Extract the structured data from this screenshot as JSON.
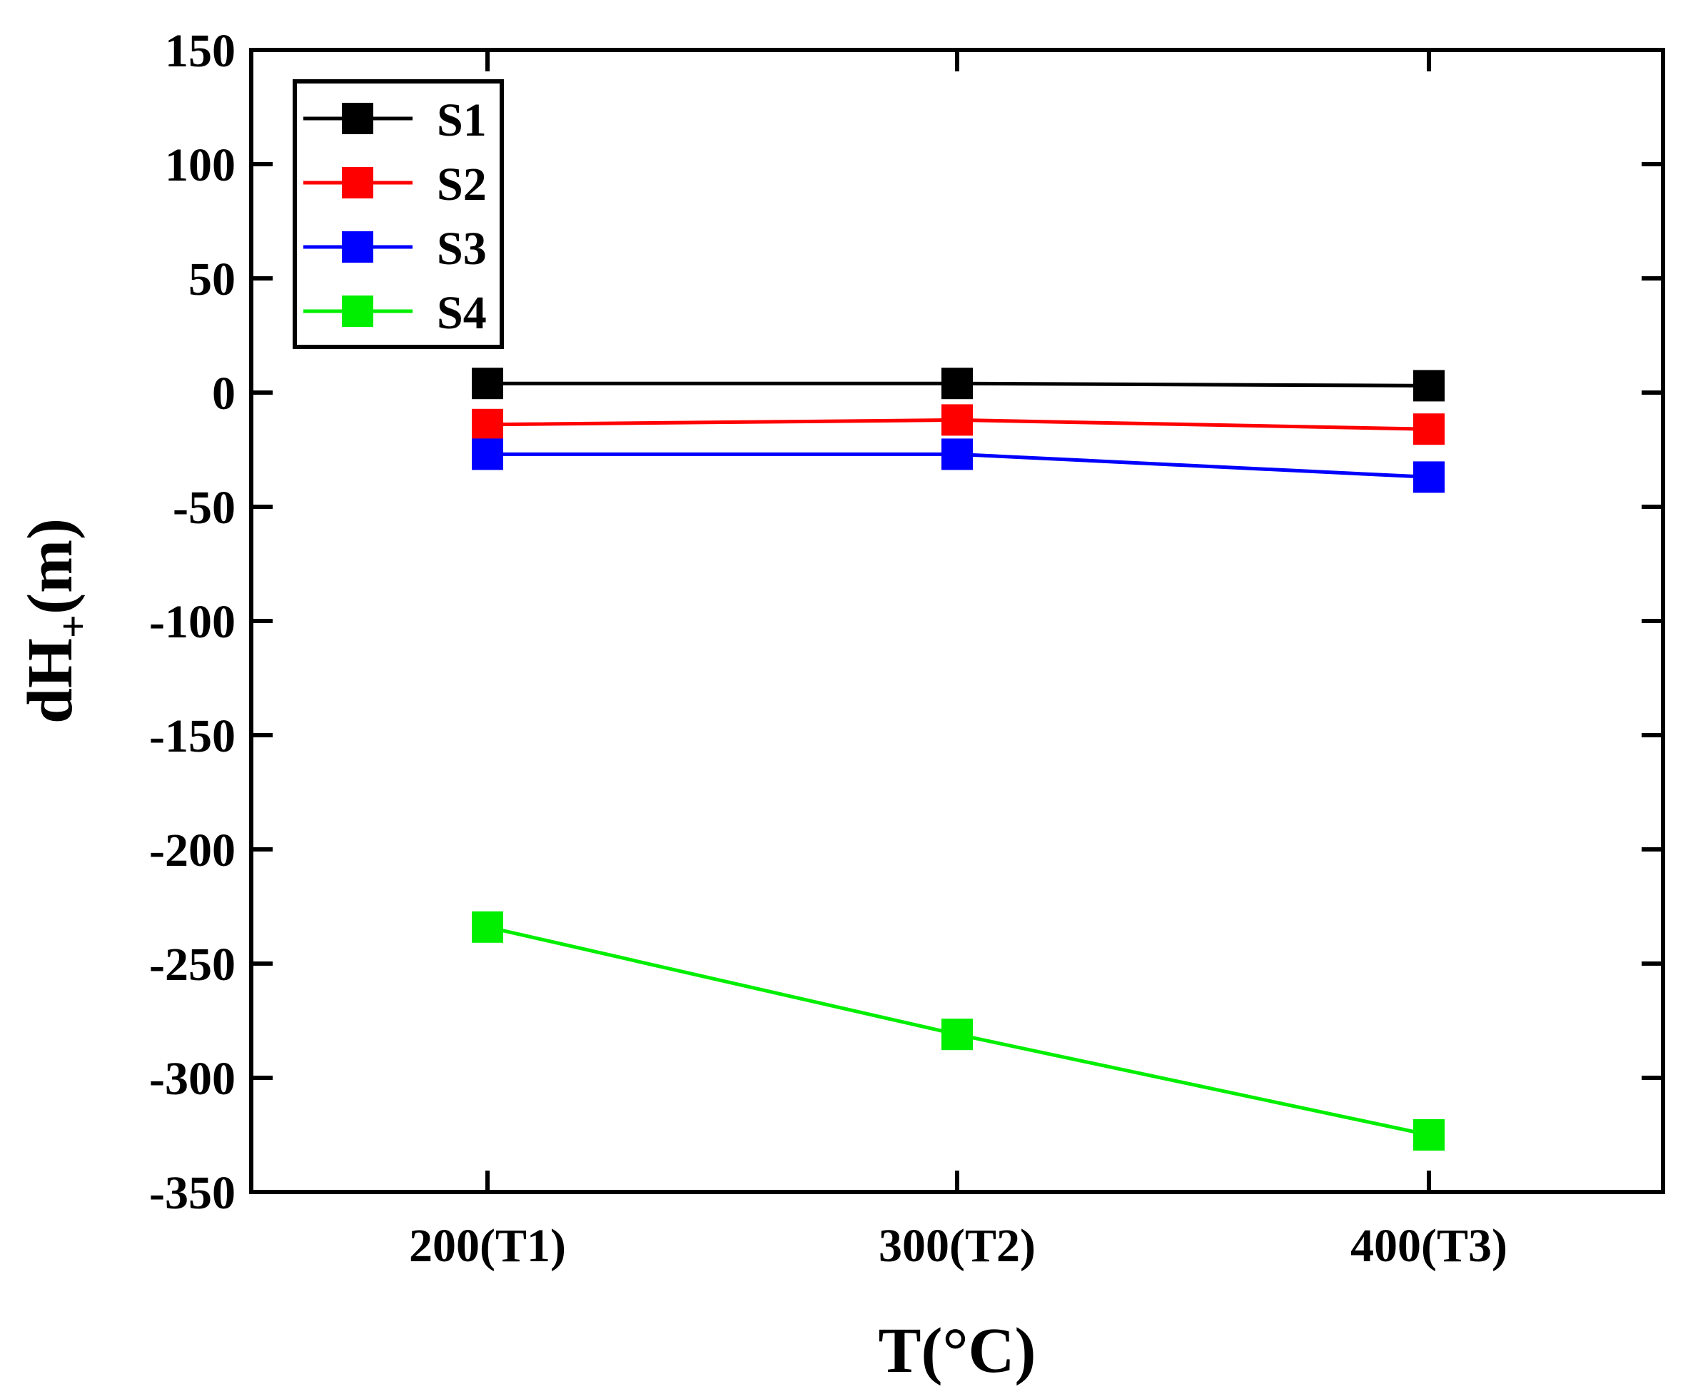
{
  "chart_data": {
    "type": "line",
    "title": "",
    "xlabel": "T(°C)",
    "ylabel_main": "dH",
    "ylabel_sub": "+",
    "ylabel_unit": "(m)",
    "categories": [
      "200(T1)",
      "300(T2)",
      "400(T3)"
    ],
    "yticks": [
      150,
      100,
      50,
      0,
      -50,
      -100,
      -150,
      -200,
      -250,
      -300,
      -350
    ],
    "ylim": [
      -350,
      150
    ],
    "legend_position": "top-left",
    "series": [
      {
        "name": "S1",
        "color": "#000000",
        "values": [
          4,
          4,
          3
        ]
      },
      {
        "name": "S2",
        "color": "#ff0000",
        "values": [
          -14,
          -12,
          -16
        ]
      },
      {
        "name": "S3",
        "color": "#0000ff",
        "values": [
          -27,
          -27,
          -37
        ]
      },
      {
        "name": "S4",
        "color": "#00ee00",
        "values": [
          -234,
          -281,
          -325
        ]
      }
    ]
  }
}
